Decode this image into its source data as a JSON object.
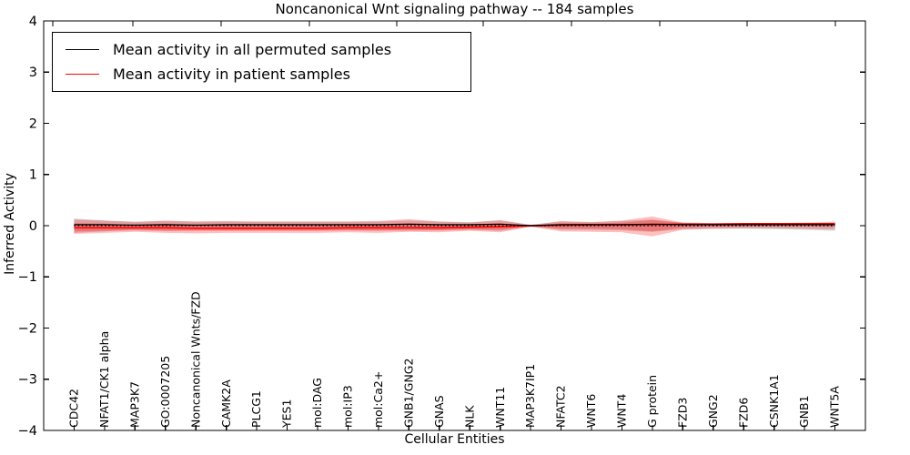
{
  "chart_data": {
    "type": "line",
    "title": "Noncanonical Wnt signaling pathway -- 184 samples",
    "xlabel": "Cellular Entities",
    "ylabel": "Inferred Activity",
    "ylim": [
      -4,
      4
    ],
    "grid": false,
    "legend_position": "upper left",
    "yticks": [
      {
        "value": 4,
        "label": "4"
      },
      {
        "value": 3,
        "label": "3"
      },
      {
        "value": 2,
        "label": "2"
      },
      {
        "value": 1,
        "label": "1"
      },
      {
        "value": 0,
        "label": "0"
      },
      {
        "value": -1,
        "label": "−1"
      },
      {
        "value": -2,
        "label": "−2"
      },
      {
        "value": -3,
        "label": "−3"
      },
      {
        "value": -4,
        "label": "−4"
      }
    ],
    "categories": [
      "CDC42",
      "NFAT1/CK1 alpha",
      "MAP3K7",
      "GO:0007205",
      "Noncanonical Wnts/FZD",
      "CAMK2A",
      "PLCG1",
      "YES1",
      "mol:DAG",
      "mol:IP3",
      "mol:Ca2+",
      "GNB1/GNG2",
      "GNAS",
      "NLK",
      "WNT11",
      "MAP3K7IP1",
      "NFATC2",
      "WNT6",
      "WNT4",
      "G protein",
      "FZD3",
      "GNG2",
      "FZD6",
      "CSNK1A1",
      "GNB1",
      "WNT5A"
    ],
    "series": [
      {
        "name": "Mean activity in all permuted samples",
        "color": "#000000",
        "style": "solid",
        "values": [
          0.02,
          0.02,
          0.01,
          0.02,
          0.01,
          0.02,
          0.02,
          0.02,
          0.02,
          0.02,
          0.02,
          0.03,
          0.02,
          0.02,
          0.03,
          0.0,
          0.02,
          0.02,
          0.02,
          0.03,
          0.02,
          0.02,
          0.02,
          0.02,
          0.02,
          0.02
        ]
      },
      {
        "name": "Mean activity in patient samples",
        "color": "#ff0000",
        "style": "solid",
        "values": [
          -0.04,
          -0.04,
          -0.04,
          -0.04,
          -0.05,
          -0.05,
          -0.05,
          -0.05,
          -0.05,
          -0.04,
          -0.04,
          -0.04,
          -0.04,
          -0.03,
          -0.02,
          0.0,
          0.01,
          0.02,
          0.02,
          0.02,
          0.03,
          0.03,
          0.04,
          0.04,
          0.04,
          0.04
        ]
      },
      {
        "name": "zero-baseline-dotted",
        "color": "#000000",
        "style": "dotted",
        "values": [
          0,
          0,
          0,
          0,
          0,
          0,
          0,
          0,
          0,
          0,
          0,
          0,
          0,
          0,
          0,
          0,
          0,
          0,
          0,
          0,
          0,
          0,
          0,
          0,
          0,
          0
        ]
      }
    ],
    "bands": [
      {
        "name": "permuted-samples-band",
        "color": "#999999",
        "opacity": 0.4,
        "upper": [
          0.14,
          0.1,
          0.08,
          0.09,
          0.08,
          0.08,
          0.08,
          0.08,
          0.08,
          0.08,
          0.08,
          0.1,
          0.08,
          0.07,
          0.1,
          0.02,
          0.08,
          0.07,
          0.09,
          0.12,
          0.06,
          0.05,
          0.05,
          0.05,
          0.06,
          0.08
        ],
        "lower": [
          -0.14,
          -0.11,
          -0.09,
          -0.1,
          -0.09,
          -0.09,
          -0.09,
          -0.09,
          -0.09,
          -0.09,
          -0.09,
          -0.1,
          -0.09,
          -0.08,
          -0.1,
          -0.02,
          -0.08,
          -0.08,
          -0.09,
          -0.12,
          -0.07,
          -0.06,
          -0.06,
          -0.07,
          -0.08,
          -0.1
        ]
      },
      {
        "name": "patient-samples-band-outer",
        "color": "#ff0000",
        "opacity": 0.25,
        "upper": [
          0.12,
          0.1,
          0.07,
          0.1,
          0.08,
          0.09,
          0.08,
          0.08,
          0.08,
          0.08,
          0.09,
          0.13,
          0.08,
          0.06,
          0.11,
          0.01,
          0.09,
          0.07,
          0.1,
          0.18,
          0.06,
          0.05,
          0.05,
          0.05,
          0.05,
          0.06
        ],
        "lower": [
          -0.16,
          -0.14,
          -0.12,
          -0.14,
          -0.15,
          -0.14,
          -0.14,
          -0.14,
          -0.14,
          -0.13,
          -0.14,
          -0.12,
          -0.13,
          -0.1,
          -0.13,
          -0.02,
          -0.11,
          -0.12,
          -0.13,
          -0.21,
          -0.08,
          -0.06,
          -0.05,
          -0.05,
          -0.06,
          -0.07
        ],
        "note": ""
      },
      {
        "name": "patient-samples-band-inner",
        "color": "#ff0000",
        "opacity": 0.25,
        "upper": [
          0.05,
          0.04,
          0.02,
          0.04,
          0.02,
          0.03,
          0.02,
          0.02,
          0.02,
          0.03,
          0.03,
          0.05,
          0.03,
          0.02,
          0.05,
          0.0,
          0.05,
          0.04,
          0.06,
          0.11,
          0.05,
          0.04,
          0.04,
          0.04,
          0.04,
          0.05
        ],
        "lower": [
          -0.11,
          -0.1,
          -0.08,
          -0.1,
          -0.1,
          -0.1,
          -0.1,
          -0.1,
          -0.1,
          -0.09,
          -0.1,
          -0.08,
          -0.09,
          -0.07,
          -0.08,
          -0.01,
          -0.06,
          -0.06,
          -0.07,
          -0.11,
          -0.04,
          -0.02,
          -0.01,
          -0.01,
          -0.01,
          -0.02
        ]
      }
    ],
    "legend": [
      {
        "label": "Mean activity in all permuted samples",
        "color": "#000000"
      },
      {
        "label": "Mean activity in patient samples",
        "color": "#ff0000"
      }
    ]
  }
}
